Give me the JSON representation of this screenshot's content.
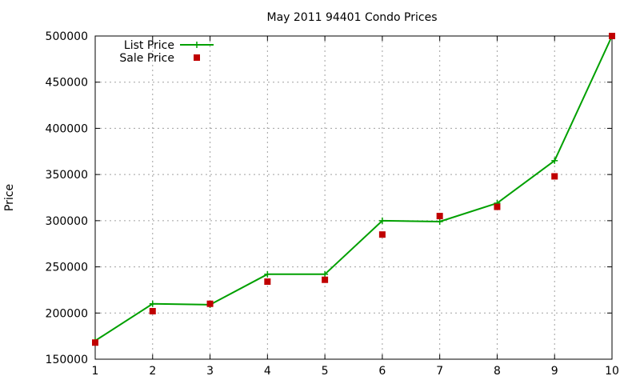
{
  "chart_data": {
    "type": "line",
    "title": "May 2011 94401 Condo Prices",
    "xlabel": "",
    "ylabel": "Price",
    "x": [
      1,
      2,
      3,
      4,
      5,
      6,
      7,
      8,
      9,
      10
    ],
    "xlim": [
      1,
      10
    ],
    "ylim": [
      150000,
      500000
    ],
    "xticks": [
      "1",
      "2",
      "3",
      "4",
      "5",
      "6",
      "7",
      "8",
      "9",
      "10"
    ],
    "yticks": [
      "150000",
      "200000",
      "250000",
      "300000",
      "350000",
      "400000",
      "450000",
      "500000"
    ],
    "grid": true,
    "legend_position": "top-left",
    "series": [
      {
        "name": "List Price",
        "style": "line+cross",
        "color": "#00a000",
        "values": [
          170000,
          210000,
          209000,
          242000,
          242000,
          300000,
          299000,
          319000,
          365000,
          500000
        ]
      },
      {
        "name": "Sale Price",
        "style": "square-markers",
        "color": "#c00000",
        "values": [
          168000,
          202000,
          210000,
          234000,
          236000,
          285000,
          305000,
          315000,
          348000,
          500000
        ]
      }
    ]
  }
}
